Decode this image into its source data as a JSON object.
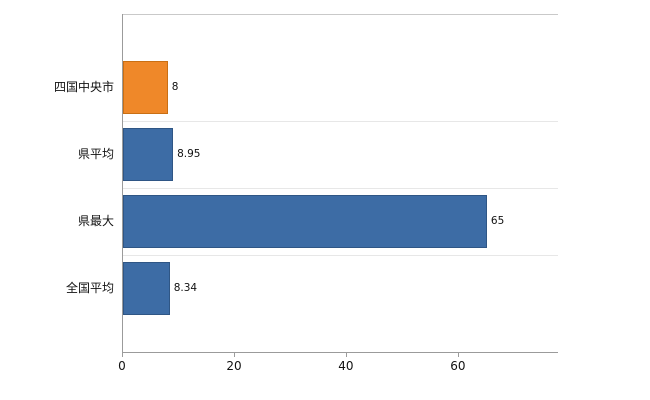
{
  "chart_data": {
    "type": "bar",
    "orientation": "horizontal",
    "title": "",
    "xlabel": "",
    "ylabel": "",
    "categories": [
      "四国中央市",
      "県平均",
      "県最大",
      "全国平均"
    ],
    "values": [
      8,
      8.95,
      65,
      8.34
    ],
    "value_labels": [
      "8",
      "8.95",
      "65",
      "8.34"
    ],
    "bar_colors": [
      "#ef8829",
      "#3d6ca5",
      "#3d6ca5",
      "#3d6ca5"
    ],
    "bar_border_colors": [
      "#c96f14",
      "#2f5685",
      "#2f5685",
      "#2f5685"
    ],
    "xlim": [
      0,
      77.7
    ],
    "x_ticks": [
      0,
      20,
      40,
      60
    ],
    "x_tick_labels": [
      "0",
      "20",
      "40",
      "60"
    ],
    "grid": "light horizontal band separators",
    "legend": "none"
  },
  "colors": {
    "highlight_bar": "#ef8829",
    "base_bar": "#3d6ca5",
    "axis": "#9b9b9b",
    "grid": "#e7e7e7",
    "text": "#111111"
  }
}
